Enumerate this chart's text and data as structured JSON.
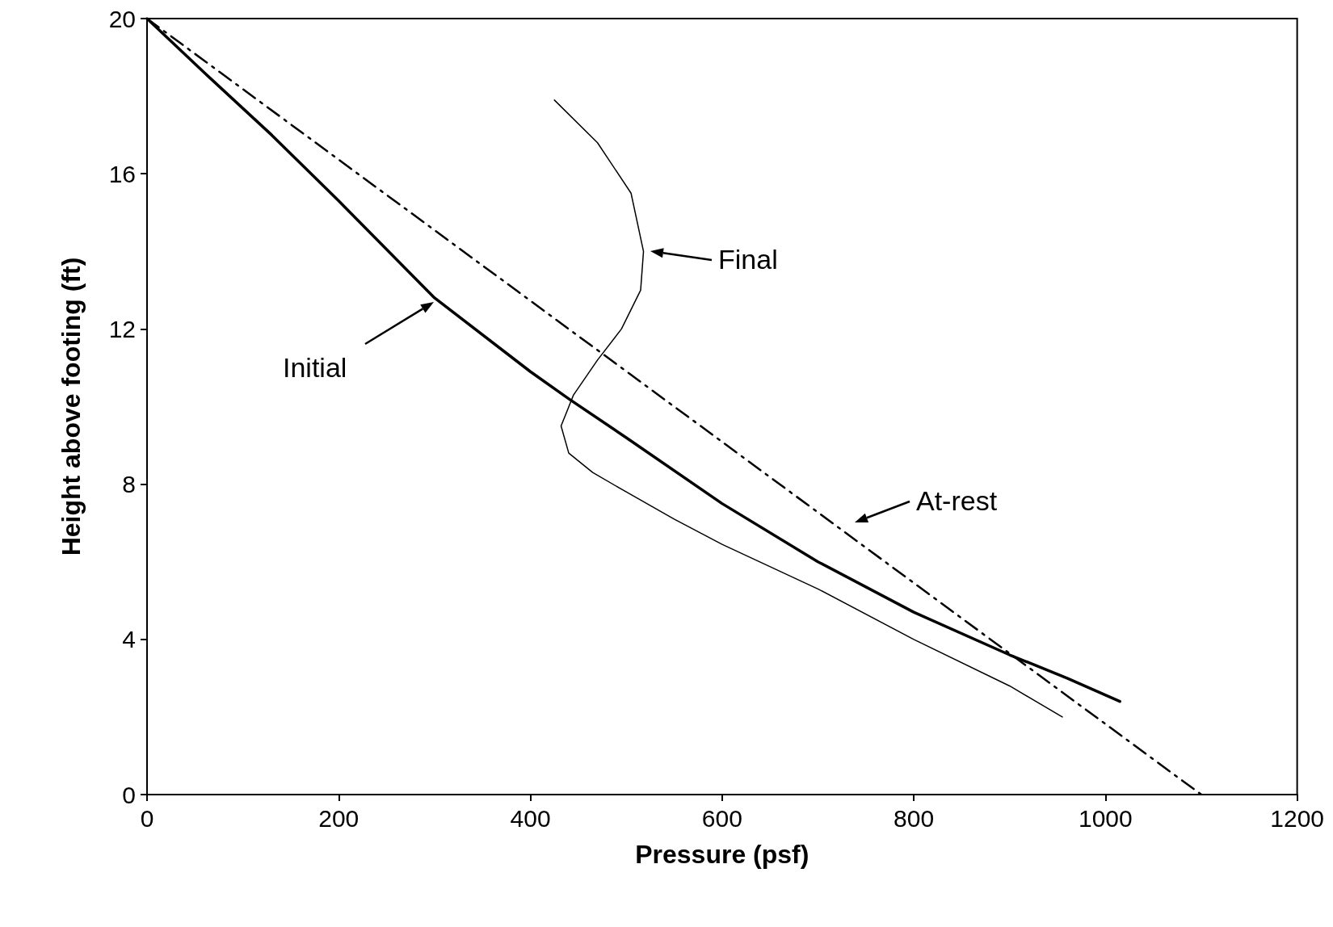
{
  "chart_data": {
    "type": "line",
    "xlabel": "Pressure (psf)",
    "ylabel": "Height above footing (ft)",
    "xlim": [
      0,
      1200
    ],
    "xticks": [
      0,
      200,
      400,
      600,
      800,
      1000,
      1200
    ],
    "ylim": [
      0,
      20
    ],
    "yticks": [
      0,
      4,
      8,
      12,
      16,
      20
    ],
    "grid": false,
    "marker": "none",
    "series": [
      {
        "color": "#000000",
        "line_style": "solid",
        "x": [
          0,
          60,
          130,
          200,
          300,
          400,
          440,
          500,
          600,
          700,
          800,
          900,
          960,
          1015
        ],
        "values": [
          20,
          18.6,
          17,
          15.3,
          12.8,
          10.9,
          10.2,
          9.2,
          7.5,
          6,
          4.7,
          3.6,
          3,
          2.4
        ]
      },
      {
        "color": "#000000",
        "line_style": "dashed",
        "x": [
          0,
          1100
        ],
        "values": [
          20,
          0
        ]
      },
      {
        "color": "#000000",
        "line_style": "solid",
        "x": [
          425,
          470,
          505,
          518,
          515,
          495,
          470,
          445,
          432,
          440,
          465,
          500,
          550,
          600,
          700,
          800,
          900,
          955
        ],
        "values": [
          17.9,
          16.8,
          15.5,
          14,
          13,
          12,
          11.2,
          10.3,
          9.5,
          8.8,
          8.3,
          7.8,
          7.1,
          6.45,
          5.3,
          4,
          2.8,
          2
        ]
      }
    ],
    "annotations": [
      "Final",
      "Initial",
      "At-rest"
    ]
  }
}
